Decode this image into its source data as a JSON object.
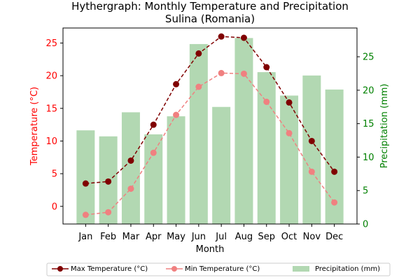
{
  "chart_data": {
    "type": "bar+line",
    "title": "Hythergraph: Monthly Temperature and Precipitation",
    "subtitle": "Sulina (Romania)",
    "xlabel": "Month",
    "ylabel_left": "Temperature (°C)",
    "ylabel_right": "Precipitation (mm)",
    "categories": [
      "Jan",
      "Feb",
      "Mar",
      "Apr",
      "May",
      "Jun",
      "Jul",
      "Aug",
      "Sep",
      "Oct",
      "Nov",
      "Dec"
    ],
    "ylim_left": [
      -2.7,
      27.3
    ],
    "yticks_left": [
      "0",
      "5",
      "10",
      "15",
      "20",
      "25"
    ],
    "ylim_right": [
      0,
      29.3
    ],
    "yticks_right": [
      "0",
      "5",
      "10",
      "15",
      "20",
      "25"
    ],
    "grid": false,
    "legend_position": "bottom",
    "series": [
      {
        "name": "Max Temperature (°C)",
        "kind": "line",
        "axis": "left",
        "color": "#800000",
        "style": "dashed",
        "values": [
          3.5,
          3.8,
          7.0,
          12.5,
          18.7,
          23.4,
          26.0,
          25.8,
          21.3,
          15.9,
          10.0,
          5.3
        ]
      },
      {
        "name": "Min Temperature (°C)",
        "kind": "line",
        "axis": "left",
        "color": "#f08080",
        "style": "dashed",
        "values": [
          -1.3,
          -0.9,
          2.7,
          8.2,
          14.0,
          18.3,
          20.4,
          20.3,
          16.0,
          11.2,
          5.3,
          0.6
        ]
      },
      {
        "name": "Precipitation (mm)",
        "kind": "bar",
        "axis": "right",
        "color": "#b2d8b2",
        "values": [
          14.0,
          13.1,
          16.7,
          13.4,
          16.1,
          26.9,
          17.5,
          27.8,
          22.7,
          19.2,
          22.2,
          20.1
        ]
      }
    ]
  },
  "colors": {
    "left_axis": "#ff0000",
    "right_axis": "#008000"
  }
}
